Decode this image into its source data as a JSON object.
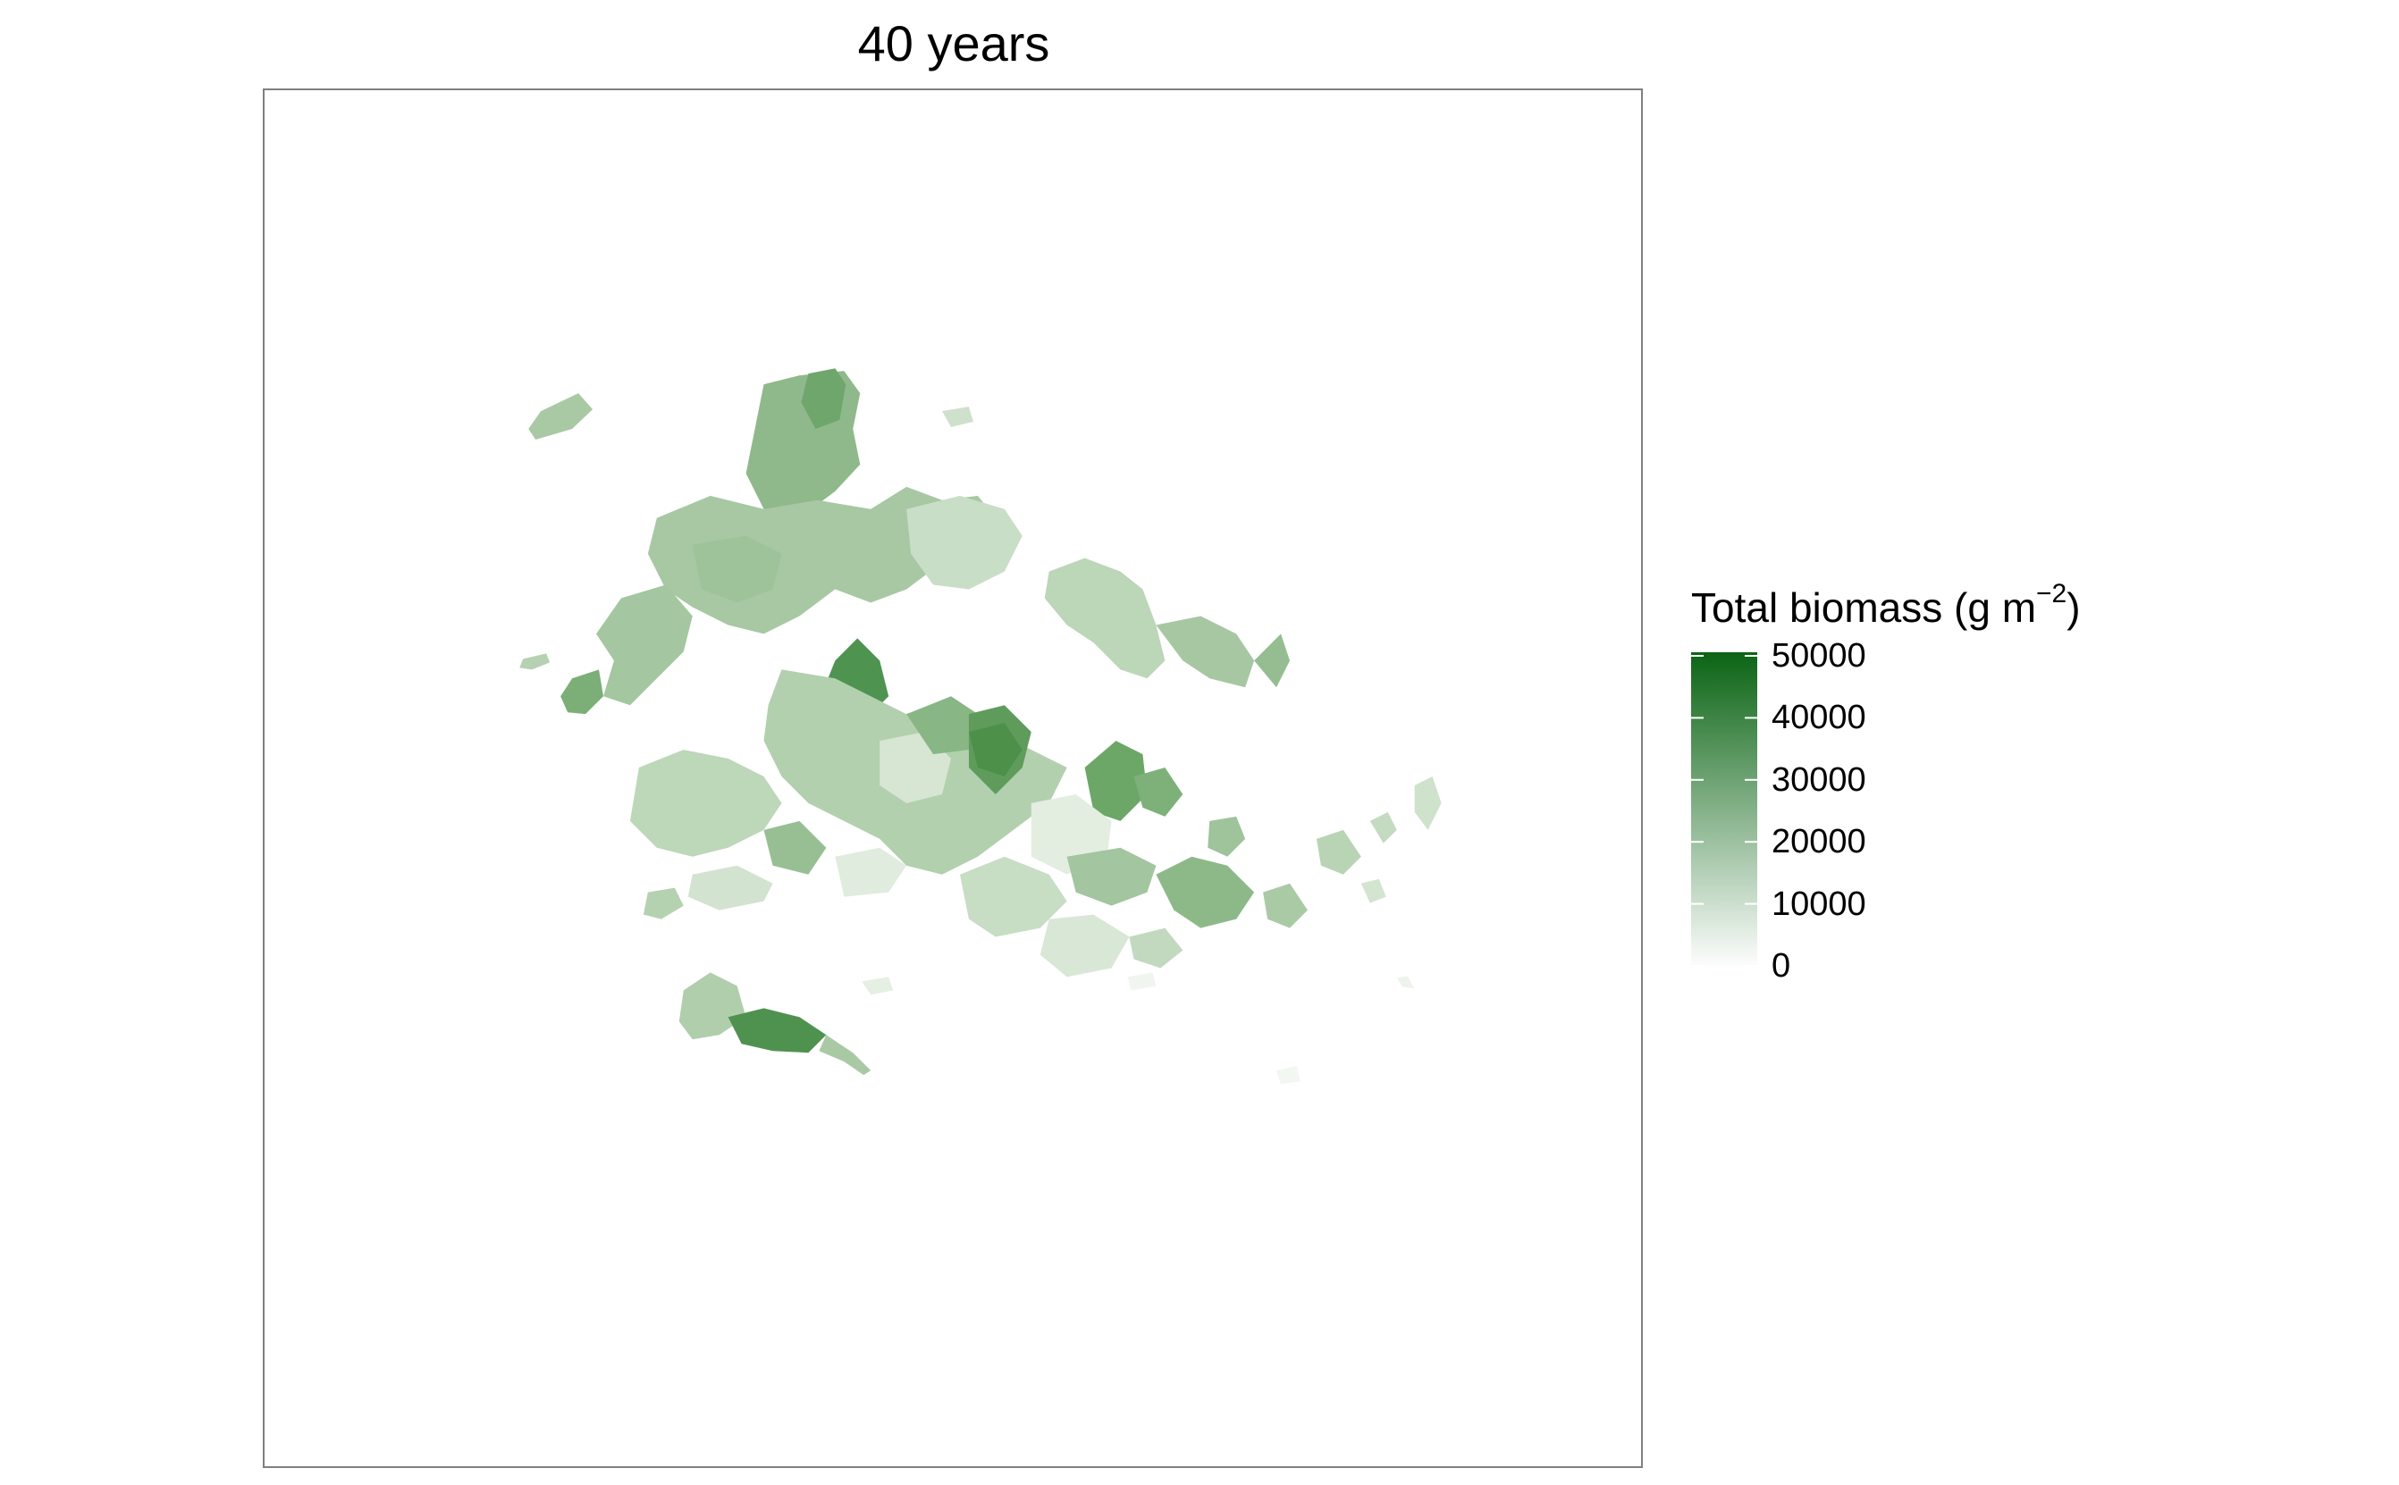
{
  "title": "40 years",
  "legend": {
    "title_prefix": "Total biomass (g m",
    "title_superscript": "−2",
    "title_suffix": ")",
    "min": 0,
    "max": 50000,
    "ticks": [
      {
        "value": 50000,
        "label": "50000"
      },
      {
        "value": 40000,
        "label": "40000"
      },
      {
        "value": 30000,
        "label": "30000"
      },
      {
        "value": 20000,
        "label": "20000"
      },
      {
        "value": 10000,
        "label": "10000"
      },
      {
        "value": 0,
        "label": "0"
      }
    ],
    "color_low": "#ffffff",
    "color_high": "#0b6414"
  },
  "colors": {
    "panel_border": "#7f7f7f",
    "background": "#ffffff"
  }
}
